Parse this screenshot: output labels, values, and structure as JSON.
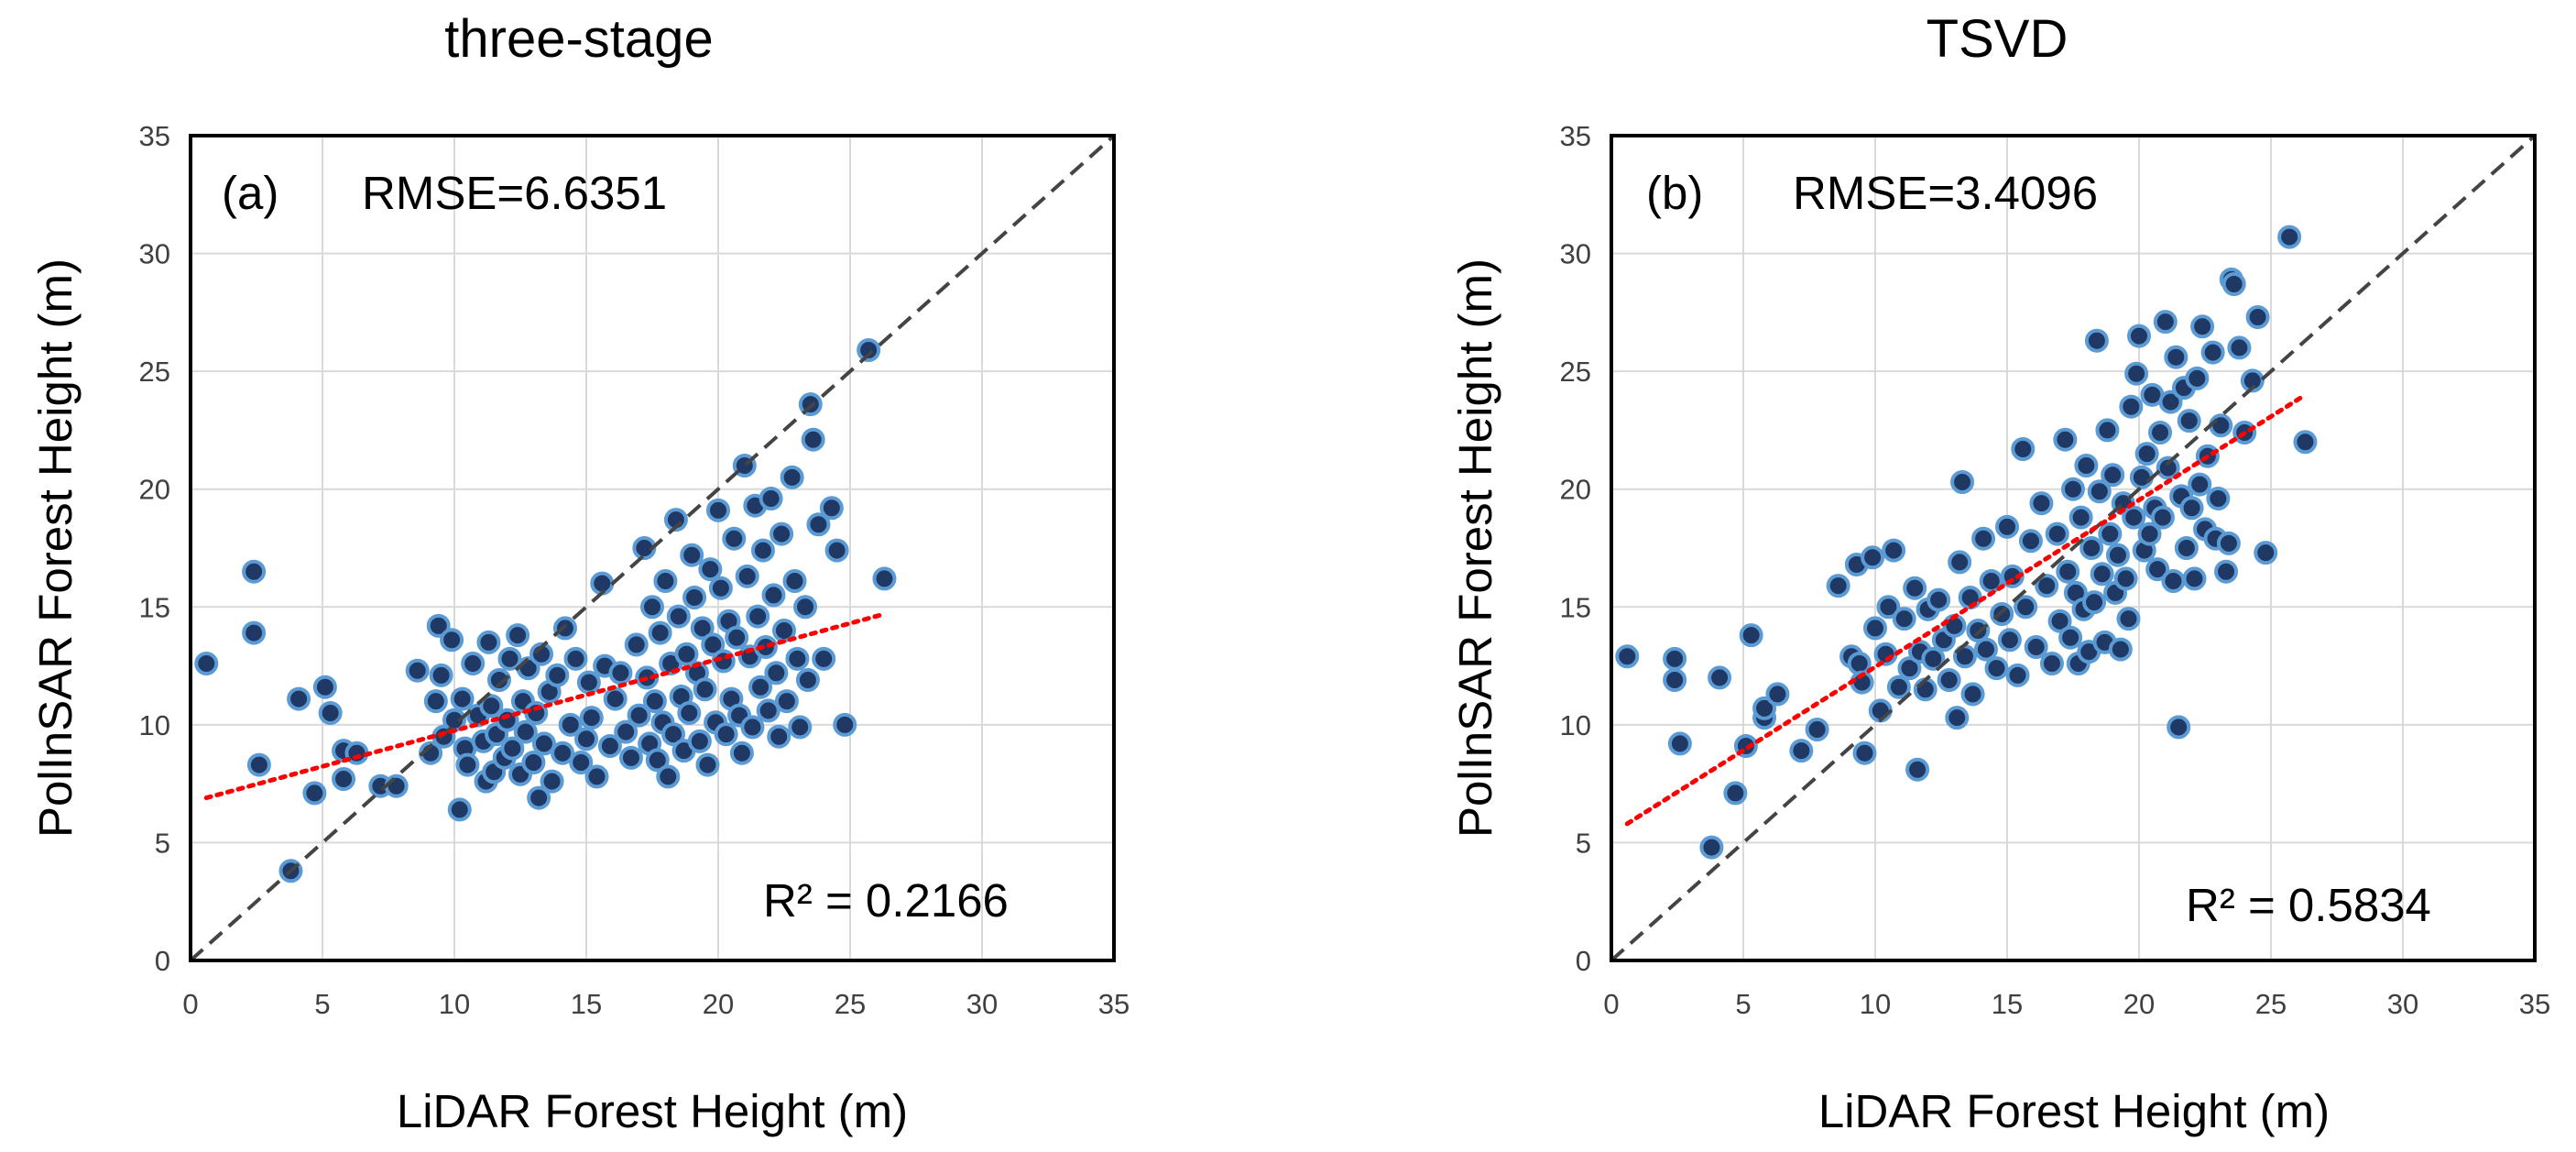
{
  "figure": {
    "panels": 2
  },
  "chart_data": [
    {
      "type": "scatter",
      "title": "three-stage",
      "panel_label": "(a)",
      "rmse_text": "RMSE=6.6351",
      "r2_text": "R² = 0.2166",
      "xlabel": "LiDAR Forest Height (m)",
      "ylabel": "PolInSAR Forest Height (m)",
      "xlim": [
        0,
        35
      ],
      "ylim": [
        0,
        35
      ],
      "xticks": [
        0,
        5,
        10,
        15,
        20,
        25,
        30,
        35
      ],
      "yticks": [
        0,
        5,
        10,
        15,
        20,
        25,
        30,
        35
      ],
      "grid": true,
      "identity_line": {
        "from": [
          0,
          0
        ],
        "to": [
          35,
          35
        ],
        "style": "dashed",
        "color": "#444444"
      },
      "trend_line": {
        "from": [
          0.6,
          6.9
        ],
        "to": [
          26.3,
          14.7
        ],
        "style": "dotted",
        "color": "#ff0000"
      },
      "marker_fill": "#1f3864",
      "marker_edge": "#5b9bd5",
      "points": [
        [
          0.6,
          12.6
        ],
        [
          2.4,
          16.5
        ],
        [
          2.4,
          13.9
        ],
        [
          2.6,
          8.3
        ],
        [
          3.8,
          3.8
        ],
        [
          4.1,
          11.1
        ],
        [
          4.7,
          7.1
        ],
        [
          5.1,
          11.6
        ],
        [
          5.3,
          10.5
        ],
        [
          5.8,
          7.7
        ],
        [
          5.8,
          8.9
        ],
        [
          6.3,
          8.8
        ],
        [
          7.2,
          7.4
        ],
        [
          7.8,
          7.4
        ],
        [
          8.6,
          12.3
        ],
        [
          9.1,
          8.8
        ],
        [
          9.3,
          11.0
        ],
        [
          9.4,
          14.2
        ],
        [
          9.5,
          12.1
        ],
        [
          9.6,
          9.5
        ],
        [
          9.9,
          13.6
        ],
        [
          10.0,
          10.2
        ],
        [
          10.2,
          6.4
        ],
        [
          10.3,
          11.1
        ],
        [
          10.4,
          9.0
        ],
        [
          10.5,
          8.3
        ],
        [
          10.7,
          12.6
        ],
        [
          10.9,
          10.4
        ],
        [
          11.1,
          9.3
        ],
        [
          11.2,
          7.6
        ],
        [
          11.3,
          13.5
        ],
        [
          11.4,
          10.8
        ],
        [
          11.5,
          8.0
        ],
        [
          11.6,
          9.6
        ],
        [
          11.7,
          11.9
        ],
        [
          11.9,
          8.6
        ],
        [
          12.0,
          10.2
        ],
        [
          12.1,
          12.8
        ],
        [
          12.2,
          9.0
        ],
        [
          12.4,
          13.8
        ],
        [
          12.5,
          7.9
        ],
        [
          12.6,
          11.0
        ],
        [
          12.7,
          9.7
        ],
        [
          12.8,
          12.4
        ],
        [
          13.0,
          8.4
        ],
        [
          13.1,
          10.5
        ],
        [
          13.2,
          6.9
        ],
        [
          13.3,
          13.0
        ],
        [
          13.4,
          9.2
        ],
        [
          13.6,
          11.4
        ],
        [
          13.7,
          7.6
        ],
        [
          13.9,
          12.1
        ],
        [
          14.1,
          8.8
        ],
        [
          14.2,
          14.1
        ],
        [
          14.4,
          10.0
        ],
        [
          14.6,
          12.8
        ],
        [
          14.8,
          8.4
        ],
        [
          15.0,
          9.4
        ],
        [
          15.1,
          11.8
        ],
        [
          15.2,
          10.3
        ],
        [
          15.4,
          7.8
        ],
        [
          15.6,
          16.0
        ],
        [
          15.7,
          12.5
        ],
        [
          15.9,
          9.1
        ],
        [
          16.1,
          11.1
        ],
        [
          16.3,
          12.2
        ],
        [
          16.5,
          9.7
        ],
        [
          16.7,
          8.6
        ],
        [
          16.9,
          13.4
        ],
        [
          17.0,
          10.4
        ],
        [
          17.2,
          17.5
        ],
        [
          17.3,
          12.0
        ],
        [
          17.4,
          9.2
        ],
        [
          17.5,
          15.0
        ],
        [
          17.6,
          11.0
        ],
        [
          17.7,
          8.5
        ],
        [
          17.8,
          13.9
        ],
        [
          17.9,
          10.1
        ],
        [
          18.0,
          16.1
        ],
        [
          18.1,
          7.8
        ],
        [
          18.2,
          12.6
        ],
        [
          18.3,
          9.6
        ],
        [
          18.4,
          18.7
        ],
        [
          18.5,
          14.6
        ],
        [
          18.6,
          11.2
        ],
        [
          18.7,
          8.9
        ],
        [
          18.8,
          13.0
        ],
        [
          18.9,
          10.5
        ],
        [
          19.0,
          17.2
        ],
        [
          19.1,
          15.4
        ],
        [
          19.2,
          12.2
        ],
        [
          19.3,
          9.3
        ],
        [
          19.4,
          14.1
        ],
        [
          19.5,
          11.5
        ],
        [
          19.6,
          8.3
        ],
        [
          19.7,
          16.6
        ],
        [
          19.8,
          13.4
        ],
        [
          19.9,
          10.1
        ],
        [
          20.0,
          19.1
        ],
        [
          20.1,
          15.8
        ],
        [
          20.2,
          12.7
        ],
        [
          20.3,
          9.6
        ],
        [
          20.4,
          14.4
        ],
        [
          20.5,
          11.1
        ],
        [
          20.6,
          17.9
        ],
        [
          20.7,
          13.7
        ],
        [
          20.8,
          10.4
        ],
        [
          20.9,
          8.8
        ],
        [
          21.0,
          21.0
        ],
        [
          21.1,
          16.3
        ],
        [
          21.2,
          12.9
        ],
        [
          21.3,
          9.9
        ],
        [
          21.4,
          19.3
        ],
        [
          21.5,
          14.6
        ],
        [
          21.6,
          11.6
        ],
        [
          21.7,
          17.4
        ],
        [
          21.8,
          13.3
        ],
        [
          21.9,
          10.6
        ],
        [
          22.0,
          19.6
        ],
        [
          22.1,
          15.5
        ],
        [
          22.2,
          12.2
        ],
        [
          22.3,
          9.5
        ],
        [
          22.4,
          18.1
        ],
        [
          22.5,
          14.0
        ],
        [
          22.6,
          11.0
        ],
        [
          22.8,
          20.5
        ],
        [
          22.9,
          16.1
        ],
        [
          23.0,
          12.8
        ],
        [
          23.1,
          9.9
        ],
        [
          23.3,
          15.0
        ],
        [
          23.4,
          11.9
        ],
        [
          23.5,
          23.6
        ],
        [
          23.6,
          22.1
        ],
        [
          23.8,
          18.5
        ],
        [
          24.0,
          12.8
        ],
        [
          24.3,
          19.2
        ],
        [
          24.5,
          17.4
        ],
        [
          24.8,
          10.0
        ],
        [
          25.7,
          25.9
        ],
        [
          26.3,
          16.2
        ]
      ]
    },
    {
      "type": "scatter",
      "title": "TSVD",
      "panel_label": "(b)",
      "rmse_text": "RMSE=3.4096",
      "r2_text": "R² = 0.5834",
      "xlabel": "LiDAR Forest Height (m)",
      "ylabel": "PolInSAR Forest Height (m)",
      "xlim": [
        0,
        35
      ],
      "ylim": [
        0,
        35
      ],
      "xticks": [
        0,
        5,
        10,
        15,
        20,
        25,
        30,
        35
      ],
      "yticks": [
        0,
        5,
        10,
        15,
        20,
        25,
        30,
        35
      ],
      "grid": true,
      "identity_line": {
        "from": [
          0,
          0
        ],
        "to": [
          35,
          35
        ],
        "style": "dashed",
        "color": "#444444"
      },
      "trend_line": {
        "from": [
          0.6,
          5.8
        ],
        "to": [
          26.3,
          24.0
        ],
        "style": "dotted",
        "color": "#ff0000"
      },
      "marker_fill": "#1f3864",
      "marker_edge": "#5b9bd5",
      "points": [
        [
          0.6,
          12.9
        ],
        [
          2.4,
          12.8
        ],
        [
          2.4,
          11.9
        ],
        [
          2.6,
          9.2
        ],
        [
          3.8,
          4.8
        ],
        [
          4.1,
          12.0
        ],
        [
          4.7,
          7.1
        ],
        [
          5.1,
          9.1
        ],
        [
          5.3,
          13.8
        ],
        [
          5.8,
          10.3
        ],
        [
          5.8,
          10.7
        ],
        [
          6.3,
          11.3
        ],
        [
          7.2,
          8.9
        ],
        [
          7.8,
          9.8
        ],
        [
          8.6,
          15.9
        ],
        [
          9.1,
          12.9
        ],
        [
          9.3,
          16.8
        ],
        [
          9.4,
          12.6
        ],
        [
          9.5,
          11.8
        ],
        [
          9.6,
          8.8
        ],
        [
          9.9,
          17.1
        ],
        [
          10.0,
          14.1
        ],
        [
          10.2,
          10.6
        ],
        [
          10.4,
          13.0
        ],
        [
          10.5,
          15.0
        ],
        [
          10.7,
          17.4
        ],
        [
          10.9,
          11.6
        ],
        [
          11.1,
          14.5
        ],
        [
          11.3,
          12.4
        ],
        [
          11.5,
          15.8
        ],
        [
          11.6,
          8.1
        ],
        [
          11.7,
          13.1
        ],
        [
          11.9,
          11.5
        ],
        [
          12.0,
          14.9
        ],
        [
          12.2,
          12.8
        ],
        [
          12.4,
          15.3
        ],
        [
          12.6,
          13.6
        ],
        [
          12.8,
          11.9
        ],
        [
          13.0,
          14.2
        ],
        [
          13.1,
          10.3
        ],
        [
          13.2,
          16.9
        ],
        [
          13.3,
          20.3
        ],
        [
          13.4,
          12.9
        ],
        [
          13.6,
          15.4
        ],
        [
          13.7,
          11.3
        ],
        [
          13.9,
          14.0
        ],
        [
          14.1,
          17.9
        ],
        [
          14.2,
          13.2
        ],
        [
          14.4,
          16.1
        ],
        [
          14.6,
          12.4
        ],
        [
          14.8,
          14.7
        ],
        [
          15.0,
          18.4
        ],
        [
          15.1,
          13.6
        ],
        [
          15.2,
          16.3
        ],
        [
          15.4,
          12.1
        ],
        [
          15.6,
          21.7
        ],
        [
          15.7,
          15.0
        ],
        [
          15.9,
          17.8
        ],
        [
          16.1,
          13.3
        ],
        [
          16.3,
          19.4
        ],
        [
          16.5,
          15.9
        ],
        [
          16.7,
          12.6
        ],
        [
          16.9,
          18.1
        ],
        [
          17.0,
          14.4
        ],
        [
          17.2,
          22.1
        ],
        [
          17.3,
          16.5
        ],
        [
          17.4,
          13.7
        ],
        [
          17.5,
          20.0
        ],
        [
          17.6,
          15.6
        ],
        [
          17.7,
          12.6
        ],
        [
          17.8,
          18.8
        ],
        [
          17.9,
          14.9
        ],
        [
          18.0,
          21.0
        ],
        [
          18.1,
          13.1
        ],
        [
          18.2,
          17.5
        ],
        [
          18.3,
          15.2
        ],
        [
          18.4,
          26.3
        ],
        [
          18.5,
          19.9
        ],
        [
          18.6,
          16.4
        ],
        [
          18.7,
          13.5
        ],
        [
          18.8,
          22.5
        ],
        [
          18.9,
          18.1
        ],
        [
          19.0,
          20.6
        ],
        [
          19.1,
          15.6
        ],
        [
          19.2,
          17.2
        ],
        [
          19.3,
          13.2
        ],
        [
          19.4,
          19.4
        ],
        [
          19.5,
          16.2
        ],
        [
          19.6,
          14.5
        ],
        [
          19.7,
          23.5
        ],
        [
          19.8,
          18.8
        ],
        [
          19.9,
          24.9
        ],
        [
          20.0,
          26.5
        ],
        [
          20.1,
          20.5
        ],
        [
          20.2,
          17.4
        ],
        [
          20.3,
          21.5
        ],
        [
          20.4,
          18.1
        ],
        [
          20.5,
          24.0
        ],
        [
          20.6,
          19.2
        ],
        [
          20.7,
          16.6
        ],
        [
          20.8,
          22.4
        ],
        [
          20.9,
          18.8
        ],
        [
          21.0,
          27.1
        ],
        [
          21.1,
          20.9
        ],
        [
          21.2,
          23.7
        ],
        [
          21.3,
          16.1
        ],
        [
          21.4,
          25.6
        ],
        [
          21.5,
          9.9
        ],
        [
          21.6,
          19.7
        ],
        [
          21.7,
          24.3
        ],
        [
          21.8,
          17.5
        ],
        [
          21.9,
          22.9
        ],
        [
          22.0,
          19.2
        ],
        [
          22.1,
          16.2
        ],
        [
          22.2,
          24.7
        ],
        [
          22.3,
          20.2
        ],
        [
          22.4,
          26.9
        ],
        [
          22.5,
          18.3
        ],
        [
          22.6,
          21.4
        ],
        [
          22.8,
          25.8
        ],
        [
          22.9,
          17.9
        ],
        [
          23.0,
          19.6
        ],
        [
          23.1,
          22.7
        ],
        [
          23.3,
          16.5
        ],
        [
          23.4,
          17.7
        ],
        [
          23.5,
          28.9
        ],
        [
          23.6,
          28.7
        ],
        [
          23.8,
          26.0
        ],
        [
          24.0,
          22.4
        ],
        [
          24.3,
          24.6
        ],
        [
          24.5,
          27.3
        ],
        [
          24.8,
          17.3
        ],
        [
          25.7,
          30.7
        ],
        [
          26.3,
          22.0
        ]
      ]
    }
  ]
}
